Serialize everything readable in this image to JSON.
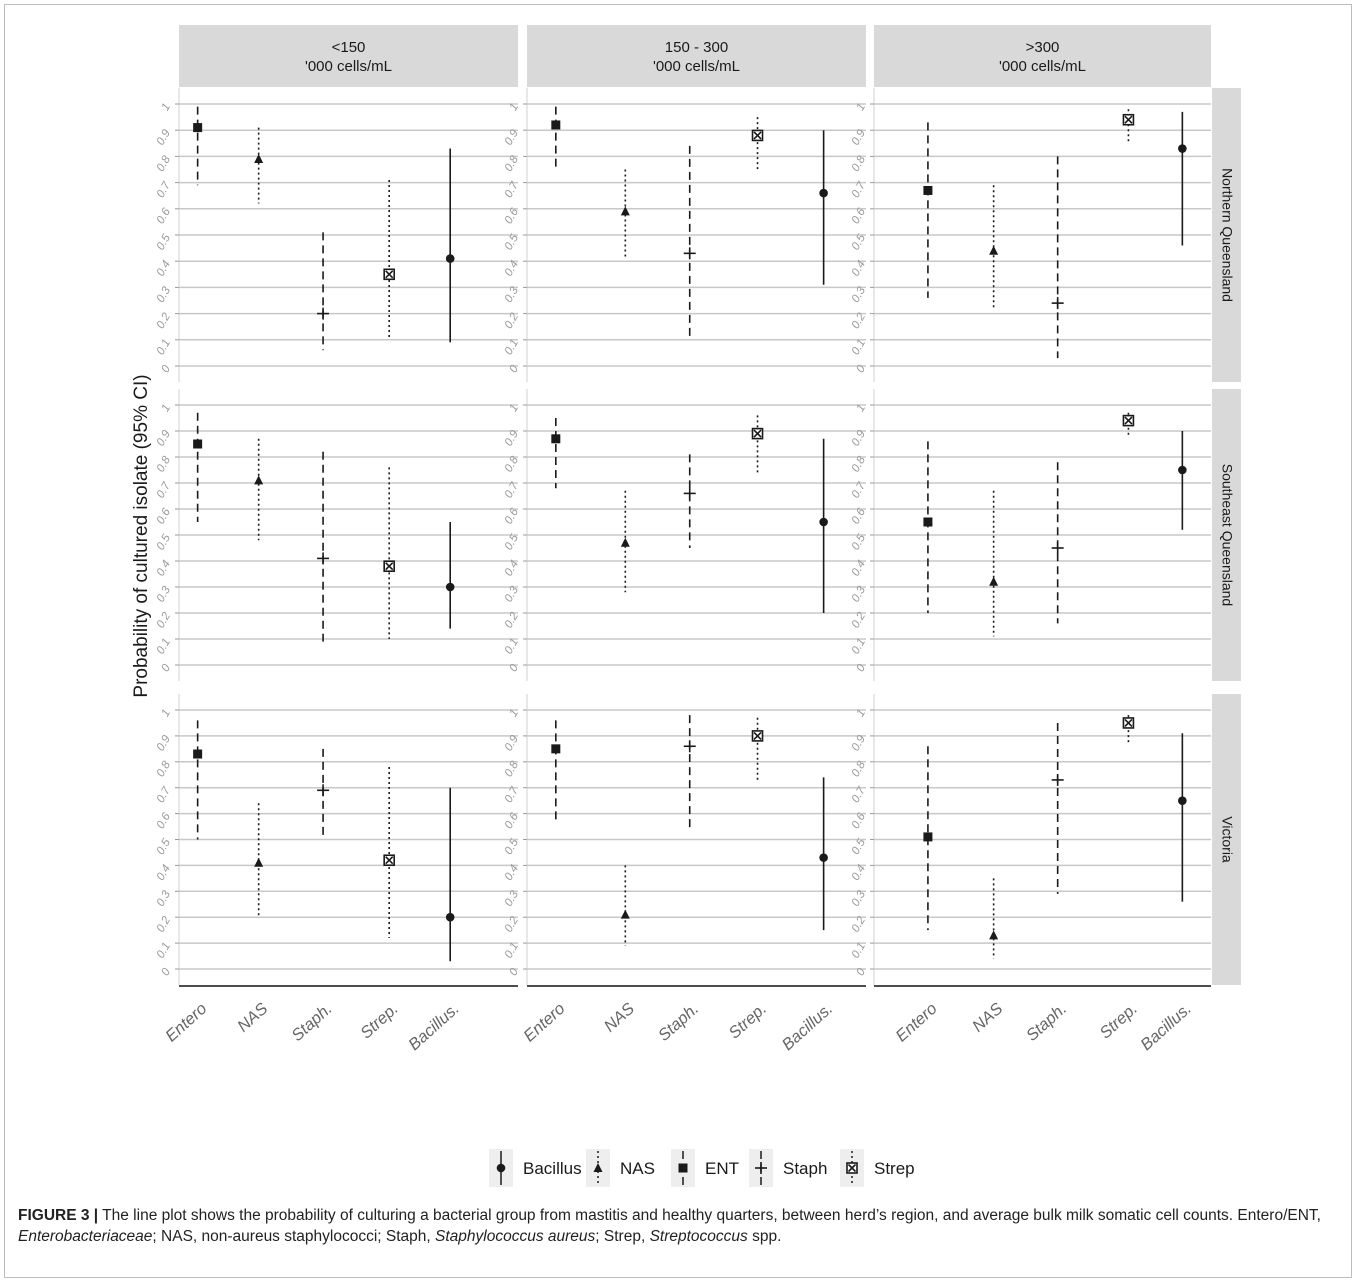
{
  "chart_data": {
    "type": "scatter",
    "ylabel": "Probability of cultured isolate (95% CI)",
    "yticks": [
      "0",
      "0.1",
      "0.2",
      "0.3",
      "0.4",
      "0.5",
      "0.6",
      "0.7",
      "0.8",
      "0.9",
      "1"
    ],
    "ylim": [
      0,
      1
    ],
    "grid": true,
    "columns": [
      "<150\n'000 cells/mL",
      "150 - 300\n'000 cells/mL",
      ">300\n'000 cells/mL"
    ],
    "rows": [
      "Northern Queensland",
      "Southeast Queensland",
      "Victoria"
    ],
    "categories": [
      "Entero",
      "NAS",
      "Staph.",
      "Strep.",
      "Bacillus."
    ],
    "legend_position": "bottom",
    "legend": [
      {
        "key": "bac",
        "label": "Bacillus",
        "marker": "circle",
        "line": "solid"
      },
      {
        "key": "nas",
        "label": "NAS",
        "marker": "triangle",
        "line": "dotted"
      },
      {
        "key": "ent",
        "label": "ENT",
        "marker": "square",
        "line": "dashed"
      },
      {
        "key": "staph",
        "label": "Staph",
        "marker": "plus",
        "line": "dashed"
      },
      {
        "key": "strep",
        "label": "Strep",
        "marker": "crossed-square",
        "line": "dotted"
      }
    ],
    "panels": [
      {
        "row": 0,
        "col": 0,
        "points": [
          {
            "key": "ent",
            "x": "Entero",
            "y": 0.91,
            "lo": 0.69,
            "hi": 0.99
          },
          {
            "key": "nas",
            "x": "NAS",
            "y": 0.79,
            "lo": 0.62,
            "hi": 0.91
          },
          {
            "key": "staph",
            "x": "Staph.",
            "y": 0.2,
            "lo": 0.06,
            "hi": 0.51
          },
          {
            "key": "strep",
            "x": "Strep.",
            "y": 0.35,
            "lo": 0.1,
            "hi": 0.71
          },
          {
            "key": "bac",
            "x": "Bacillus.",
            "y": 0.41,
            "lo": 0.09,
            "hi": 0.83
          }
        ]
      },
      {
        "row": 0,
        "col": 1,
        "points": [
          {
            "key": "ent",
            "x": "Entero",
            "y": 0.92,
            "lo": 0.75,
            "hi": 0.99
          },
          {
            "key": "nas",
            "x": "NAS",
            "y": 0.59,
            "lo": 0.41,
            "hi": 0.75
          },
          {
            "key": "staph",
            "x": "Staph.",
            "y": 0.43,
            "lo": 0.1,
            "hi": 0.84
          },
          {
            "key": "strep",
            "x": "Strep.",
            "y": 0.88,
            "lo": 0.75,
            "hi": 0.95
          },
          {
            "key": "bac",
            "x": "Bacillus.",
            "y": 0.66,
            "lo": 0.31,
            "hi": 0.9
          }
        ]
      },
      {
        "row": 0,
        "col": 2,
        "points": [
          {
            "key": "ent",
            "x": "Entero",
            "y": 0.67,
            "lo": 0.26,
            "hi": 0.93
          },
          {
            "key": "nas",
            "x": "NAS",
            "y": 0.44,
            "lo": 0.22,
            "hi": 0.69
          },
          {
            "key": "staph",
            "x": "Staph.",
            "y": 0.24,
            "lo": 0.03,
            "hi": 0.8
          },
          {
            "key": "strep",
            "x": "Strep.",
            "y": 0.94,
            "lo": 0.85,
            "hi": 0.98
          },
          {
            "key": "bac",
            "x": "Bacillus.",
            "y": 0.83,
            "lo": 0.46,
            "hi": 0.97
          }
        ]
      },
      {
        "row": 1,
        "col": 0,
        "points": [
          {
            "key": "ent",
            "x": "Entero",
            "y": 0.85,
            "lo": 0.55,
            "hi": 0.97
          },
          {
            "key": "nas",
            "x": "NAS",
            "y": 0.71,
            "lo": 0.48,
            "hi": 0.87
          },
          {
            "key": "staph",
            "x": "Staph.",
            "y": 0.41,
            "lo": 0.09,
            "hi": 0.82
          },
          {
            "key": "strep",
            "x": "Strep.",
            "y": 0.38,
            "lo": 0.1,
            "hi": 0.76
          },
          {
            "key": "bac",
            "x": "Bacillus.",
            "y": 0.3,
            "lo": 0.14,
            "hi": 0.55
          }
        ]
      },
      {
        "row": 1,
        "col": 1,
        "points": [
          {
            "key": "ent",
            "x": "Entero",
            "y": 0.87,
            "lo": 0.68,
            "hi": 0.95
          },
          {
            "key": "nas",
            "x": "NAS",
            "y": 0.47,
            "lo": 0.28,
            "hi": 0.67
          },
          {
            "key": "staph",
            "x": "Staph.",
            "y": 0.66,
            "lo": 0.45,
            "hi": 0.81
          },
          {
            "key": "strep",
            "x": "Strep.",
            "y": 0.89,
            "lo": 0.74,
            "hi": 0.96
          },
          {
            "key": "bac",
            "x": "Bacillus.",
            "y": 0.55,
            "lo": 0.2,
            "hi": 0.87
          }
        ]
      },
      {
        "row": 1,
        "col": 2,
        "points": [
          {
            "key": "ent",
            "x": "Entero",
            "y": 0.55,
            "lo": 0.2,
            "hi": 0.86
          },
          {
            "key": "nas",
            "x": "NAS",
            "y": 0.32,
            "lo": 0.11,
            "hi": 0.67
          },
          {
            "key": "staph",
            "x": "Staph.",
            "y": 0.45,
            "lo": 0.16,
            "hi": 0.78
          },
          {
            "key": "strep",
            "x": "Strep.",
            "y": 0.94,
            "lo": 0.88,
            "hi": 0.97
          },
          {
            "key": "bac",
            "x": "Bacillus.",
            "y": 0.75,
            "lo": 0.52,
            "hi": 0.9
          }
        ]
      },
      {
        "row": 2,
        "col": 0,
        "points": [
          {
            "key": "ent",
            "x": "Entero",
            "y": 0.83,
            "lo": 0.5,
            "hi": 0.96
          },
          {
            "key": "nas",
            "x": "NAS",
            "y": 0.41,
            "lo": 0.2,
            "hi": 0.64
          },
          {
            "key": "staph",
            "x": "Staph.",
            "y": 0.69,
            "lo": 0.5,
            "hi": 0.85
          },
          {
            "key": "strep",
            "x": "Strep.",
            "y": 0.42,
            "lo": 0.12,
            "hi": 0.78
          },
          {
            "key": "bac",
            "x": "Bacillus.",
            "y": 0.2,
            "lo": 0.03,
            "hi": 0.7
          }
        ]
      },
      {
        "row": 2,
        "col": 1,
        "points": [
          {
            "key": "ent",
            "x": "Entero",
            "y": 0.85,
            "lo": 0.56,
            "hi": 0.96
          },
          {
            "key": "nas",
            "x": "NAS",
            "y": 0.21,
            "lo": 0.09,
            "hi": 0.4
          },
          {
            "key": "staph",
            "x": "Staph.",
            "y": 0.86,
            "lo": 0.53,
            "hi": 0.98
          },
          {
            "key": "strep",
            "x": "Strep.",
            "y": 0.9,
            "lo": 0.72,
            "hi": 0.97
          },
          {
            "key": "bac",
            "x": "Bacillus.",
            "y": 0.43,
            "lo": 0.15,
            "hi": 0.74
          }
        ]
      },
      {
        "row": 2,
        "col": 2,
        "points": [
          {
            "key": "ent",
            "x": "Entero",
            "y": 0.51,
            "lo": 0.15,
            "hi": 0.86
          },
          {
            "key": "nas",
            "x": "NAS",
            "y": 0.13,
            "lo": 0.04,
            "hi": 0.35
          },
          {
            "key": "staph",
            "x": "Staph.",
            "y": 0.73,
            "lo": 0.29,
            "hi": 0.95
          },
          {
            "key": "strep",
            "x": "Strep.",
            "y": 0.95,
            "lo": 0.87,
            "hi": 0.98
          },
          {
            "key": "bac",
            "x": "Bacillus.",
            "y": 0.65,
            "lo": 0.26,
            "hi": 0.91
          }
        ]
      }
    ]
  },
  "caption": {
    "label": "FIGURE 3 |",
    "parts": [
      {
        "t": " The line plot shows the probability of culturing a bacterial group from mastitis and healthy quarters, between herd’s region, and average bulk milk somatic cell counts. Entero/ENT, ",
        "i": false
      },
      {
        "t": "Enterobacteriaceae",
        "i": true
      },
      {
        "t": "; NAS, non-aureus staphylococci; Staph, ",
        "i": false
      },
      {
        "t": "Staphylococcus aureus",
        "i": true
      },
      {
        "t": "; Strep, ",
        "i": false
      },
      {
        "t": "Streptococcus",
        "i": true
      },
      {
        "t": " spp.",
        "i": false
      }
    ]
  },
  "colors": {
    "ink": "#1a1a1a",
    "grid": "#c8c8c8",
    "strip": "#d9d9d9",
    "axis": "#4d4d4d"
  }
}
